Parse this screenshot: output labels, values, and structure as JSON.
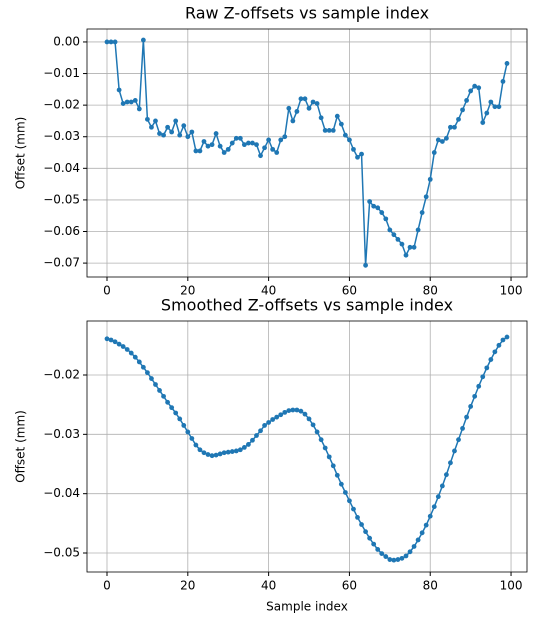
{
  "chart_data": [
    {
      "type": "line",
      "title": "Raw Z-offsets vs sample index",
      "ylabel": "Offset (mm)",
      "color": "#1f77b4",
      "grid": true,
      "markers": true,
      "x": [
        0,
        1,
        2,
        3,
        4,
        5,
        6,
        7,
        8,
        9,
        10,
        11,
        12,
        13,
        14,
        15,
        16,
        17,
        18,
        19,
        20,
        21,
        22,
        23,
        24,
        25,
        26,
        27,
        28,
        29,
        30,
        31,
        32,
        33,
        34,
        35,
        36,
        37,
        38,
        39,
        40,
        41,
        42,
        43,
        44,
        45,
        46,
        47,
        48,
        49,
        50,
        51,
        52,
        53,
        54,
        55,
        56,
        57,
        58,
        59,
        60,
        61,
        62,
        63,
        64,
        65,
        66,
        67,
        68,
        69,
        70,
        71,
        72,
        73,
        74,
        75,
        76,
        77,
        78,
        79,
        80,
        81,
        82,
        83,
        84,
        85,
        86,
        87,
        88,
        89,
        90,
        91,
        92,
        93,
        94,
        95,
        96,
        97,
        98,
        99
      ],
      "values": [
        0,
        0,
        0,
        -0.0152,
        -0.0195,
        -0.019,
        -0.019,
        -0.0185,
        -0.0212,
        0.0006,
        -0.0245,
        -0.027,
        -0.025,
        -0.029,
        -0.0295,
        -0.027,
        -0.0285,
        -0.025,
        -0.0295,
        -0.0265,
        -0.03,
        -0.0285,
        -0.0345,
        -0.0345,
        -0.0315,
        -0.033,
        -0.0325,
        -0.029,
        -0.033,
        -0.035,
        -0.034,
        -0.032,
        -0.0305,
        -0.0305,
        -0.0325,
        -0.032,
        -0.032,
        -0.0325,
        -0.036,
        -0.0335,
        -0.031,
        -0.034,
        -0.035,
        -0.031,
        -0.03,
        -0.021,
        -0.025,
        -0.022,
        -0.018,
        -0.018,
        -0.021,
        -0.019,
        -0.0195,
        -0.024,
        -0.028,
        -0.028,
        -0.028,
        -0.0235,
        -0.026,
        -0.0295,
        -0.031,
        -0.034,
        -0.0365,
        -0.0355,
        -0.0707,
        -0.0505,
        -0.052,
        -0.0525,
        -0.054,
        -0.056,
        -0.0595,
        -0.061,
        -0.0625,
        -0.064,
        -0.0675,
        -0.065,
        -0.065,
        -0.0595,
        -0.054,
        -0.049,
        -0.0435,
        -0.035,
        -0.031,
        -0.0315,
        -0.0305,
        -0.027,
        -0.027,
        -0.0245,
        -0.0215,
        -0.0185,
        -0.0155,
        -0.014,
        -0.0145,
        -0.0255,
        -0.0225,
        -0.019,
        -0.0205,
        -0.0205,
        -0.0125,
        -0.0068
      ],
      "xlim": [
        -4.95,
        103.95
      ],
      "ylim": [
        -0.0744,
        0.0041
      ],
      "xticks": [
        0,
        20,
        40,
        60,
        80,
        100
      ],
      "yticks": [
        {
          "value": 0,
          "label": "0.00"
        },
        {
          "value": -0.01,
          "label": "−0.01"
        },
        {
          "value": -0.02,
          "label": "−0.02"
        },
        {
          "value": -0.03,
          "label": "−0.03"
        },
        {
          "value": -0.04,
          "label": "−0.04"
        },
        {
          "value": -0.05,
          "label": "−0.05"
        },
        {
          "value": -0.06,
          "label": "−0.06"
        },
        {
          "value": -0.07,
          "label": "−0.07"
        }
      ]
    },
    {
      "type": "line",
      "title": "Smoothed Z-offsets vs sample index",
      "xlabel": "Sample index",
      "ylabel": "Offset (mm)",
      "color": "#1f77b4",
      "grid": true,
      "markers": true,
      "x": [
        0,
        1,
        2,
        3,
        4,
        5,
        6,
        7,
        8,
        9,
        10,
        11,
        12,
        13,
        14,
        15,
        16,
        17,
        18,
        19,
        20,
        21,
        22,
        23,
        24,
        25,
        26,
        27,
        28,
        29,
        30,
        31,
        32,
        33,
        34,
        35,
        36,
        37,
        38,
        39,
        40,
        41,
        42,
        43,
        44,
        45,
        46,
        47,
        48,
        49,
        50,
        51,
        52,
        53,
        54,
        55,
        56,
        57,
        58,
        59,
        60,
        61,
        62,
        63,
        64,
        65,
        66,
        67,
        68,
        69,
        70,
        71,
        72,
        73,
        74,
        75,
        76,
        77,
        78,
        79,
        80,
        81,
        82,
        83,
        84,
        85,
        86,
        87,
        88,
        89,
        90,
        91,
        92,
        93,
        94,
        95,
        96,
        97,
        98,
        99
      ],
      "values": [
        -0.0139,
        -0.0141,
        -0.0144,
        -0.0148,
        -0.0152,
        -0.0157,
        -0.0163,
        -0.017,
        -0.0178,
        -0.0187,
        -0.0196,
        -0.0206,
        -0.0216,
        -0.0226,
        -0.0236,
        -0.0246,
        -0.0255,
        -0.0264,
        -0.0274,
        -0.0285,
        -0.0296,
        -0.0307,
        -0.0318,
        -0.0326,
        -0.0331,
        -0.0334,
        -0.0336,
        -0.0335,
        -0.0333,
        -0.0331,
        -0.033,
        -0.0329,
        -0.0328,
        -0.0326,
        -0.0322,
        -0.0317,
        -0.031,
        -0.0302,
        -0.0294,
        -0.0285,
        -0.028,
        -0.0275,
        -0.0271,
        -0.0267,
        -0.0263,
        -0.026,
        -0.0259,
        -0.0259,
        -0.0261,
        -0.0266,
        -0.0274,
        -0.0284,
        -0.0296,
        -0.0309,
        -0.0323,
        -0.0338,
        -0.0353,
        -0.0369,
        -0.0384,
        -0.0398,
        -0.0412,
        -0.0426,
        -0.044,
        -0.0452,
        -0.0464,
        -0.0475,
        -0.0485,
        -0.0494,
        -0.0501,
        -0.0506,
        -0.0511,
        -0.0512,
        -0.0511,
        -0.0509,
        -0.0505,
        -0.0498,
        -0.0489,
        -0.0478,
        -0.0466,
        -0.0453,
        -0.0438,
        -0.0422,
        -0.0405,
        -0.0387,
        -0.0368,
        -0.0348,
        -0.0328,
        -0.0309,
        -0.029,
        -0.0271,
        -0.0253,
        -0.0236,
        -0.0219,
        -0.0203,
        -0.0188,
        -0.0174,
        -0.0161,
        -0.015,
        -0.0141,
        -0.0136
      ],
      "xlim": [
        -4.95,
        103.95
      ],
      "ylim": [
        -0.0532,
        -0.0109
      ],
      "xticks": [
        0,
        20,
        40,
        60,
        80,
        100
      ],
      "yticks": [
        {
          "value": -0.02,
          "label": "−0.02"
        },
        {
          "value": -0.03,
          "label": "−0.03"
        },
        {
          "value": -0.04,
          "label": "−0.04"
        },
        {
          "value": -0.05,
          "label": "−0.05"
        }
      ]
    }
  ]
}
